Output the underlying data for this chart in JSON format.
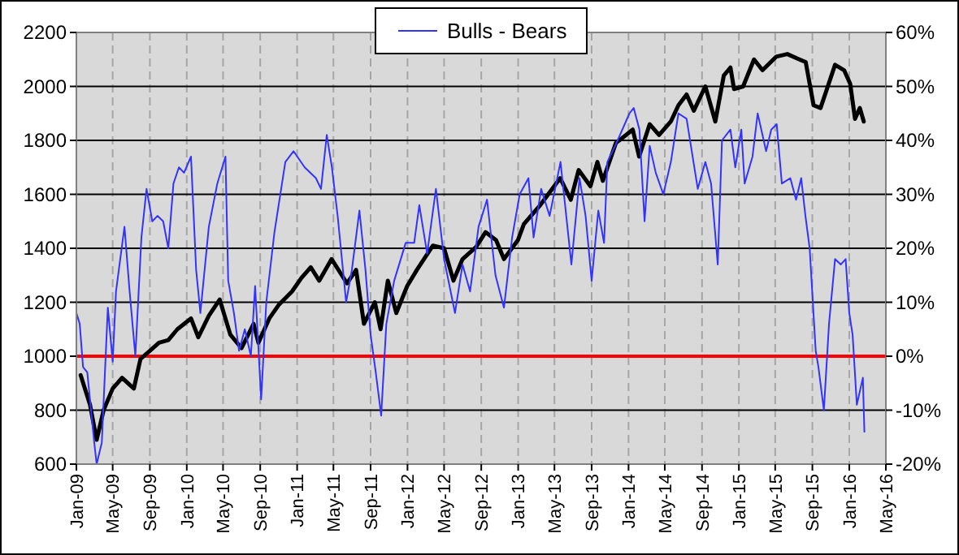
{
  "chart_data": {
    "type": "line",
    "legend": "top",
    "grid": true,
    "xlim": [
      "2009-01-01",
      "2016-05-01"
    ],
    "xticks": [
      {
        "value": "2009-01-01",
        "label": "Jan-09"
      },
      {
        "value": "2009-05-01",
        "label": "May-09"
      },
      {
        "value": "2009-09-01",
        "label": "Sep-09"
      },
      {
        "value": "2010-01-01",
        "label": "Jan-10"
      },
      {
        "value": "2010-05-01",
        "label": "May-10"
      },
      {
        "value": "2010-09-01",
        "label": "Sep-10"
      },
      {
        "value": "2011-01-01",
        "label": "Jan-11"
      },
      {
        "value": "2011-05-01",
        "label": "May-11"
      },
      {
        "value": "2011-09-01",
        "label": "Sep-11"
      },
      {
        "value": "2012-01-01",
        "label": "Jan-12"
      },
      {
        "value": "2012-05-01",
        "label": "May-12"
      },
      {
        "value": "2012-09-01",
        "label": "Sep-12"
      },
      {
        "value": "2013-01-01",
        "label": "Jan-13"
      },
      {
        "value": "2013-05-01",
        "label": "May-13"
      },
      {
        "value": "2013-09-01",
        "label": "Sep-13"
      },
      {
        "value": "2014-01-01",
        "label": "Jan-14"
      },
      {
        "value": "2014-05-01",
        "label": "May-14"
      },
      {
        "value": "2014-09-01",
        "label": "Sep-14"
      },
      {
        "value": "2015-01-01",
        "label": "Jan-15"
      },
      {
        "value": "2015-05-01",
        "label": "May-15"
      },
      {
        "value": "2015-09-01",
        "label": "Sep-15"
      },
      {
        "value": "2016-01-01",
        "label": "Jan-16"
      },
      {
        "value": "2016-05-01",
        "label": "May-16"
      }
    ],
    "ylim": [
      600,
      2200
    ],
    "yticks": [
      600,
      800,
      1000,
      1200,
      1400,
      1600,
      1800,
      2000,
      2200
    ],
    "y2lim": [
      -20,
      60
    ],
    "y2ticks": [
      {
        "value": -20,
        "label": "-20%"
      },
      {
        "value": -10,
        "label": "-10%"
      },
      {
        "value": 0,
        "label": "0%"
      },
      {
        "value": 10,
        "label": "10%"
      },
      {
        "value": 20,
        "label": "20%"
      },
      {
        "value": 30,
        "label": "30%"
      },
      {
        "value": 40,
        "label": "40%"
      },
      {
        "value": 50,
        "label": "50%"
      },
      {
        "value": 60,
        "label": "60%"
      }
    ],
    "ref_lines": [
      {
        "axis": "y2",
        "value": 0,
        "color": "#ff0000"
      }
    ],
    "series": [
      {
        "color": "#000000",
        "x": [
          "2009-01-15",
          "2009-02-15",
          "2009-03-09",
          "2009-04-01",
          "2009-05-01",
          "2009-06-01",
          "2009-07-10",
          "2009-08-01",
          "2009-09-01",
          "2009-10-01",
          "2009-11-01",
          "2009-12-01",
          "2010-01-15",
          "2010-02-08",
          "2010-03-15",
          "2010-04-20",
          "2010-05-25",
          "2010-07-01",
          "2010-08-10",
          "2010-08-26",
          "2010-10-01",
          "2010-11-01",
          "2010-12-15",
          "2011-01-15",
          "2011-02-15",
          "2011-03-15",
          "2011-04-25",
          "2011-06-15",
          "2011-07-15",
          "2011-08-10",
          "2011-09-15",
          "2011-10-04",
          "2011-10-28",
          "2011-11-25",
          "2011-12-31",
          "2012-02-01",
          "2012-03-25",
          "2012-05-01",
          "2012-06-01",
          "2012-07-01",
          "2012-08-15",
          "2012-09-15",
          "2012-10-20",
          "2012-11-15",
          "2012-12-31",
          "2013-01-20",
          "2013-03-15",
          "2013-05-20",
          "2013-06-24",
          "2013-07-20",
          "2013-08-28",
          "2013-09-20",
          "2013-10-08",
          "2013-11-20",
          "2014-01-15",
          "2014-02-05",
          "2014-03-12",
          "2014-04-12",
          "2014-05-21",
          "2014-06-15",
          "2014-07-12",
          "2014-08-05",
          "2014-09-12",
          "2014-10-15",
          "2014-11-12",
          "2014-12-04",
          "2014-12-16",
          "2015-01-15",
          "2015-02-20",
          "2015-03-20",
          "2015-05-04",
          "2015-06-10",
          "2015-07-20",
          "2015-08-10",
          "2015-09-05",
          "2015-09-28",
          "2015-10-22",
          "2015-11-15",
          "2015-12-15",
          "2016-01-04",
          "2016-01-20",
          "2016-02-05",
          "2016-02-18"
        ],
        "values": [
          930,
          820,
          690,
          800,
          880,
          920,
          880,
          990,
          1020,
          1050,
          1060,
          1100,
          1140,
          1070,
          1150,
          1210,
          1080,
          1030,
          1120,
          1050,
          1140,
          1190,
          1240,
          1290,
          1330,
          1280,
          1360,
          1270,
          1320,
          1120,
          1200,
          1100,
          1280,
          1160,
          1260,
          1320,
          1410,
          1400,
          1280,
          1360,
          1405,
          1460,
          1430,
          1360,
          1430,
          1490,
          1560,
          1660,
          1580,
          1690,
          1630,
          1720,
          1650,
          1790,
          1840,
          1740,
          1860,
          1820,
          1870,
          1930,
          1970,
          1910,
          2000,
          1870,
          2040,
          2070,
          1990,
          2000,
          2100,
          2060,
          2110,
          2120,
          2100,
          2090,
          1930,
          1920,
          2000,
          2080,
          2060,
          2010,
          1880,
          1920,
          1870
        ]
      },
      {
        "name": "Bulls - Bears",
        "color": "#3333ff",
        "axis": "y2",
        "x": [
          "2009-01-01",
          "2009-01-12",
          "2009-01-23",
          "2009-02-06",
          "2009-03-01",
          "2009-03-09",
          "2009-03-26",
          "2009-04-15",
          "2009-05-01",
          "2009-05-12",
          "2009-06-09",
          "2009-06-26",
          "2009-07-15",
          "2009-08-04",
          "2009-08-21",
          "2009-09-09",
          "2009-09-26",
          "2009-10-15",
          "2009-11-01",
          "2009-11-18",
          "2009-12-06",
          "2009-12-23",
          "2010-01-15",
          "2010-02-01",
          "2010-02-15",
          "2010-03-15",
          "2010-04-12",
          "2010-05-09",
          "2010-05-18",
          "2010-06-06",
          "2010-06-23",
          "2010-07-12",
          "2010-08-01",
          "2010-08-15",
          "2010-09-04",
          "2010-09-21",
          "2010-10-18",
          "2010-11-23",
          "2010-12-20",
          "2011-01-26",
          "2011-03-04",
          "2011-03-21",
          "2011-04-09",
          "2011-04-26",
          "2011-05-15",
          "2011-06-12",
          "2011-07-01",
          "2011-07-26",
          "2011-08-15",
          "2011-09-01",
          "2011-09-18",
          "2011-10-06",
          "2011-10-23",
          "2011-11-18",
          "2011-12-26",
          "2012-01-23",
          "2012-02-09",
          "2012-03-06",
          "2012-04-04",
          "2012-05-01",
          "2012-06-06",
          "2012-07-01",
          "2012-07-26",
          "2012-08-23",
          "2012-09-20",
          "2012-10-18",
          "2012-11-15",
          "2012-12-12",
          "2013-01-06",
          "2013-02-04",
          "2013-02-21",
          "2013-03-18",
          "2013-04-15",
          "2013-05-21",
          "2013-06-09",
          "2013-06-26",
          "2013-07-23",
          "2013-08-12",
          "2013-09-01",
          "2013-09-23",
          "2013-10-12",
          "2013-10-23",
          "2013-11-18",
          "2014-01-04",
          "2014-01-18",
          "2014-02-06",
          "2014-02-23",
          "2014-03-12",
          "2014-04-01",
          "2014-04-26",
          "2014-05-21",
          "2014-06-15",
          "2014-07-12",
          "2014-08-18",
          "2014-09-12",
          "2014-10-01",
          "2014-10-23",
          "2014-11-06",
          "2014-12-04",
          "2014-12-20",
          "2015-01-09",
          "2015-01-20",
          "2015-02-15",
          "2015-03-04",
          "2015-04-01",
          "2015-04-18",
          "2015-05-06",
          "2015-05-23",
          "2015-06-20",
          "2015-07-09",
          "2015-07-26",
          "2015-08-09",
          "2015-08-23",
          "2015-09-12",
          "2015-09-21",
          "2015-10-09",
          "2015-10-26",
          "2015-11-15",
          "2015-12-04",
          "2015-12-20",
          "2016-01-01",
          "2016-01-12",
          "2016-01-26",
          "2016-02-15",
          "2016-02-20"
        ],
        "values": [
          8,
          6,
          -2,
          -3,
          -16,
          -20,
          -16,
          9,
          -1,
          12,
          24,
          12,
          0,
          22,
          31,
          25,
          26,
          25,
          20,
          32,
          35,
          34,
          37,
          16,
          8,
          24,
          32,
          37,
          14,
          8,
          1,
          5,
          0,
          13,
          -8,
          10,
          23,
          36,
          38,
          35,
          33,
          31,
          41,
          35,
          26,
          10,
          16,
          27,
          16,
          4,
          -3,
          -11,
          6,
          14,
          21,
          21,
          28,
          19,
          31,
          18,
          8,
          17,
          12,
          24,
          29,
          15,
          9,
          22,
          30,
          33,
          22,
          31,
          26,
          36,
          26,
          17,
          33,
          26,
          14,
          27,
          21,
          36,
          39,
          45,
          46,
          42,
          25,
          39,
          34,
          30,
          36,
          45,
          44,
          31,
          36,
          32,
          17,
          40,
          42,
          35,
          42,
          32,
          37,
          45,
          38,
          42,
          43,
          32,
          33,
          29,
          33,
          26,
          20,
          1,
          -2,
          -10,
          6,
          18,
          17,
          18,
          8,
          4,
          -9,
          -4,
          -14
        ]
      }
    ]
  }
}
